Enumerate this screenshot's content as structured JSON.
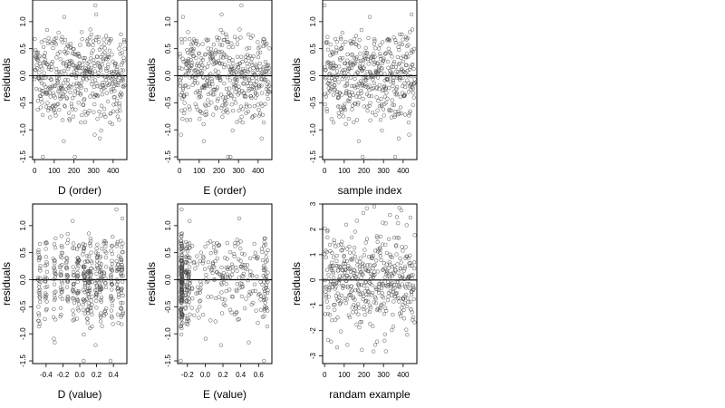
{
  "chart_data": [
    {
      "type": "scatter",
      "xlabel": "D (order)",
      "ylabel": "residuals",
      "xlim": [
        -10,
        470
      ],
      "ylim": [
        -1.55,
        1.4
      ],
      "xticks": [
        0,
        100,
        200,
        300,
        400
      ],
      "xtick_labels": [
        "0",
        "100",
        "200",
        "300",
        "400"
      ],
      "yticks": [
        -1.5,
        -1.0,
        -0.5,
        0.0,
        0.5,
        1.0
      ],
      "ytick_labels": [
        "-1.5",
        "-1.0",
        "-0.5",
        "0.0",
        "0.5",
        "1.0"
      ],
      "hline": 0,
      "grid": false,
      "points": {
        "x": [],
        "y": []
      }
    },
    {
      "type": "scatter",
      "xlabel": "E (order)",
      "ylabel": "residuals",
      "xlim": [
        -10,
        470
      ],
      "ylim": [
        -1.55,
        1.4
      ],
      "xticks": [
        0,
        100,
        200,
        300,
        400
      ],
      "xtick_labels": [
        "0",
        "100",
        "200",
        "300",
        "400"
      ],
      "yticks": [
        -1.5,
        -1.0,
        -0.5,
        0.0,
        0.5,
        1.0
      ],
      "ytick_labels": [
        "-1.5",
        "-1.0",
        "-0.5",
        "0.0",
        "0.5",
        "1.0"
      ],
      "hline": 0,
      "grid": false,
      "points": {
        "x": [],
        "y": []
      }
    },
    {
      "type": "scatter",
      "xlabel": "sample index",
      "ylabel": "residuals",
      "xlim": [
        -10,
        470
      ],
      "ylim": [
        -1.55,
        1.4
      ],
      "xticks": [
        0,
        100,
        200,
        300,
        400
      ],
      "xtick_labels": [
        "0",
        "100",
        "200",
        "300",
        "400"
      ],
      "yticks": [
        -1.5,
        -1.0,
        -0.5,
        0.0,
        0.5,
        1.0
      ],
      "ytick_labels": [
        "-1.5",
        "-1.0",
        "-0.5",
        "0.0",
        "0.5",
        "1.0"
      ],
      "hline": 0,
      "grid": false,
      "points": {
        "x": [],
        "y": []
      }
    },
    {
      "type": "scatter",
      "xlabel": "D (value)",
      "ylabel": "residuals",
      "xlim": [
        -0.56,
        0.56
      ],
      "ylim": [
        -1.55,
        1.4
      ],
      "xticks": [
        -0.4,
        -0.2,
        0.0,
        0.2,
        0.4
      ],
      "xtick_labels": [
        "-0.4",
        "-0.2",
        "0.0",
        "0.2",
        "0.4"
      ],
      "yticks": [
        -1.5,
        -1.0,
        -0.5,
        0.0,
        0.5,
        1.0
      ],
      "ytick_labels": [
        "-1.5",
        "-1.0",
        "-0.5",
        "0.0",
        "0.5",
        "1.0"
      ],
      "hline": 0,
      "grid": false,
      "points": {
        "x": [],
        "y": []
      }
    },
    {
      "type": "scatter",
      "xlabel": "E (value)",
      "ylabel": "residuals",
      "xlim": [
        -0.31,
        0.75
      ],
      "ylim": [
        -1.55,
        1.4
      ],
      "xticks": [
        -0.2,
        0.0,
        0.2,
        0.4,
        0.6
      ],
      "xtick_labels": [
        "-0.2",
        "0.0",
        "0.2",
        "0.4",
        "0.6"
      ],
      "yticks": [
        -1.5,
        -1.0,
        -0.5,
        0.0,
        0.5,
        1.0
      ],
      "ytick_labels": [
        "-1.5",
        "-1.0",
        "-0.5",
        "0.0",
        "0.5",
        "1.0"
      ],
      "hline": 0,
      "grid": false,
      "points": {
        "x": [],
        "y": []
      }
    },
    {
      "type": "scatter",
      "xlabel": "randam example",
      "ylabel": "residuals",
      "xlim": [
        -10,
        470
      ],
      "ylim": [
        -3.3,
        3.0
      ],
      "xticks": [
        0,
        100,
        200,
        300,
        400
      ],
      "xtick_labels": [
        "0",
        "100",
        "200",
        "300",
        "400"
      ],
      "yticks": [
        -3,
        -2,
        -1,
        0,
        1,
        2,
        3
      ],
      "ytick_labels": [
        "-3",
        "-2",
        "-1",
        "0",
        "1",
        "2",
        "3"
      ],
      "hline": 0,
      "grid": false,
      "points": {
        "x": [],
        "y": []
      }
    }
  ]
}
